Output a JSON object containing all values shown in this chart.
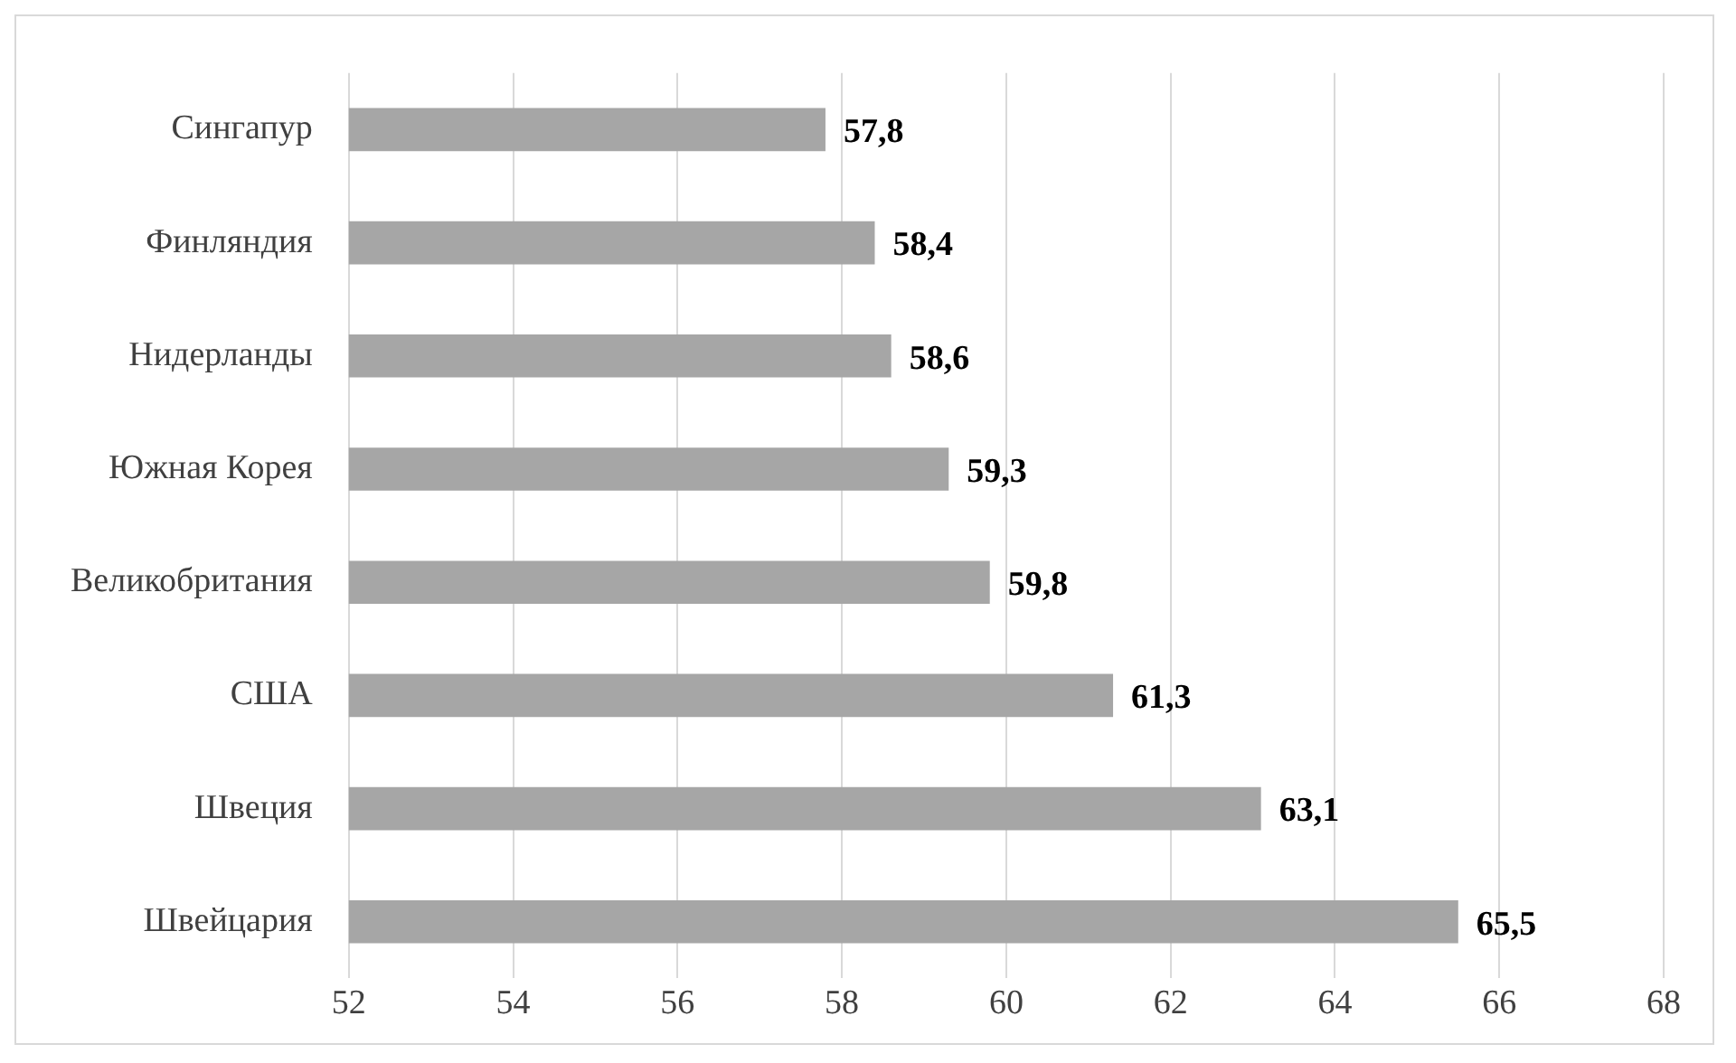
{
  "chart_data": {
    "type": "bar",
    "orientation": "horizontal",
    "categories": [
      "Сингапур",
      "Финляндия",
      "Нидерланды",
      "Южная Корея",
      "Великобритания",
      "США",
      "Швеция",
      "Швейцария"
    ],
    "values": [
      57.8,
      58.4,
      58.6,
      59.3,
      59.8,
      61.3,
      63.1,
      65.5
    ],
    "value_labels": [
      "57,8",
      "58,4",
      "58,6",
      "59,3",
      "59,8",
      "61,3",
      "63,1",
      "65,5"
    ],
    "color": "#a6a6a6",
    "xlim": [
      52,
      68
    ],
    "xticks": [
      52,
      54,
      56,
      58,
      60,
      62,
      64,
      66,
      68
    ],
    "grid": "x",
    "legend": false
  }
}
